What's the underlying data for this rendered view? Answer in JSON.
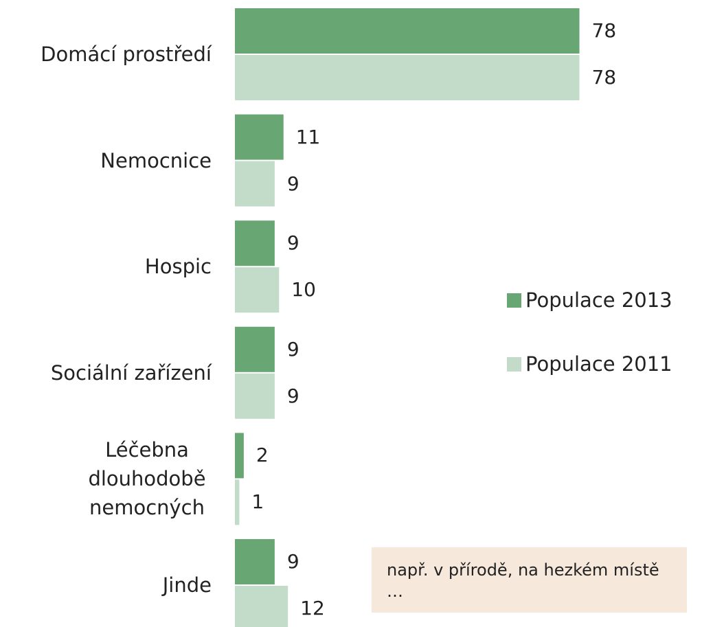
{
  "chart_data": {
    "type": "hbar",
    "categories": [
      "Domácí prostředí",
      "Nemocnice",
      "Hospic",
      "Sociální zařízení",
      "Léčebna dlouhodobě nemocných",
      "Jinde"
    ],
    "series": [
      {
        "name": "Populace 2013",
        "color": "#68a674",
        "values": [
          78,
          11,
          9,
          9,
          2,
          9
        ]
      },
      {
        "name": "Populace 2011",
        "color": "#c3dcc9",
        "values": [
          78,
          9,
          10,
          9,
          1,
          12
        ]
      }
    ],
    "legend": "right",
    "annotation": "např. v přírodě, na hezkém místě …"
  }
}
